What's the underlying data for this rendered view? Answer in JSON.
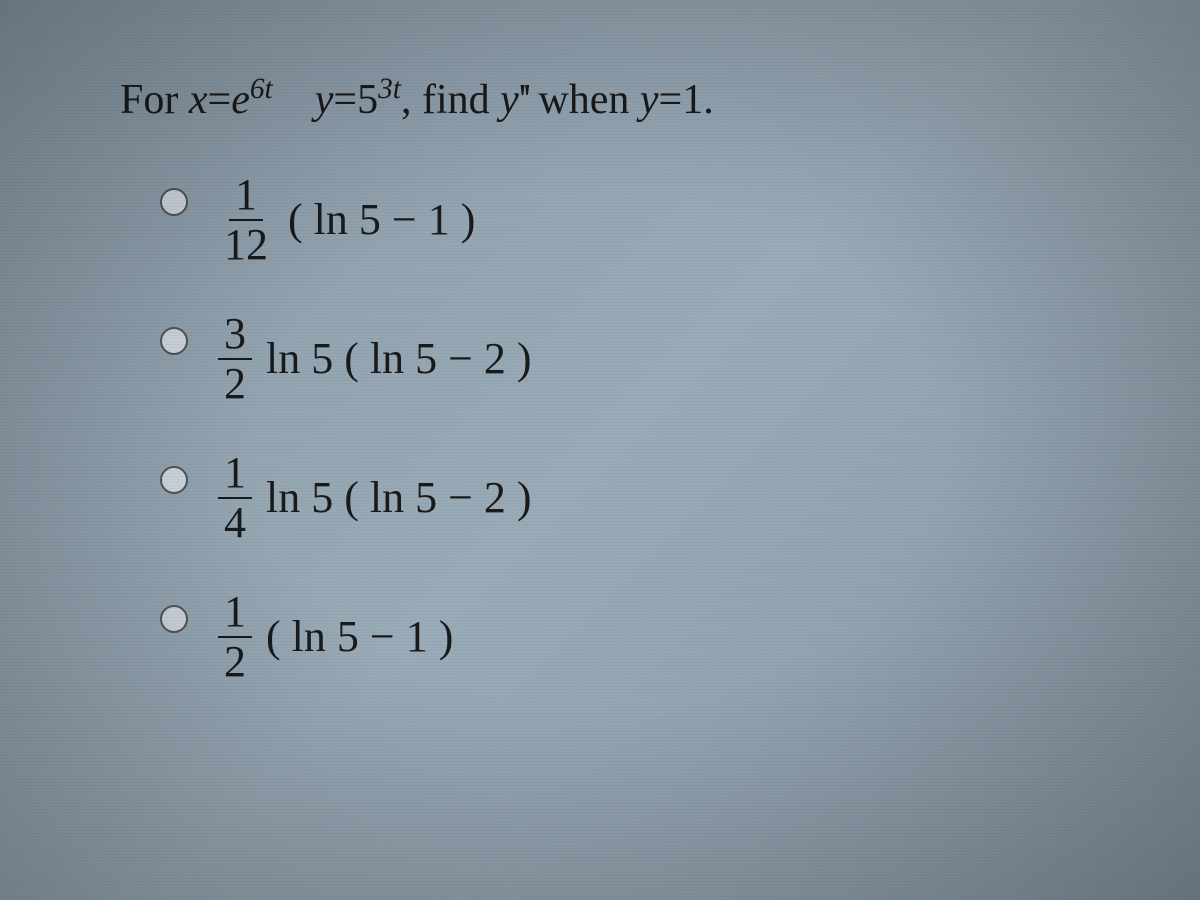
{
  "question": {
    "prefix": "For ",
    "eq1_lhs": "x",
    "eq1_eq": "=",
    "eq1_rhs_base": "e",
    "eq1_rhs_exp": "6t",
    "gap": "  ",
    "eq2_lhs": "y",
    "eq2_eq": "=",
    "eq2_rhs_base": "5",
    "eq2_rhs_exp": "3t",
    "mid1": ", find ",
    "find_var": "y",
    "find_primes": "''",
    "mid2": " when ",
    "cond_lhs": "y",
    "cond_eq": "=",
    "cond_rhs": "1",
    "suffix": "."
  },
  "options": [
    {
      "frac_num": "1",
      "frac_den": "12",
      "rest": "( ln 5 − 1 )"
    },
    {
      "frac_num": "3",
      "frac_den": "2",
      "rest": "ln 5 ( ln 5 − 2 )"
    },
    {
      "frac_num": "1",
      "frac_den": "4",
      "rest": "ln 5 ( ln 5 − 2 )"
    },
    {
      "frac_num": "1",
      "frac_den": "2",
      "rest": "( ln 5 − 1 )"
    }
  ],
  "styling": {
    "background_gradient": [
      "#8a9ba8",
      "#9aabb8",
      "#8898a5"
    ],
    "text_color": "#1a1a1a",
    "radio_border": "#555555",
    "radio_fill": "#d0d8e0",
    "question_fontsize": 42,
    "option_fontsize": 44,
    "font_family": "Times New Roman, serif"
  }
}
